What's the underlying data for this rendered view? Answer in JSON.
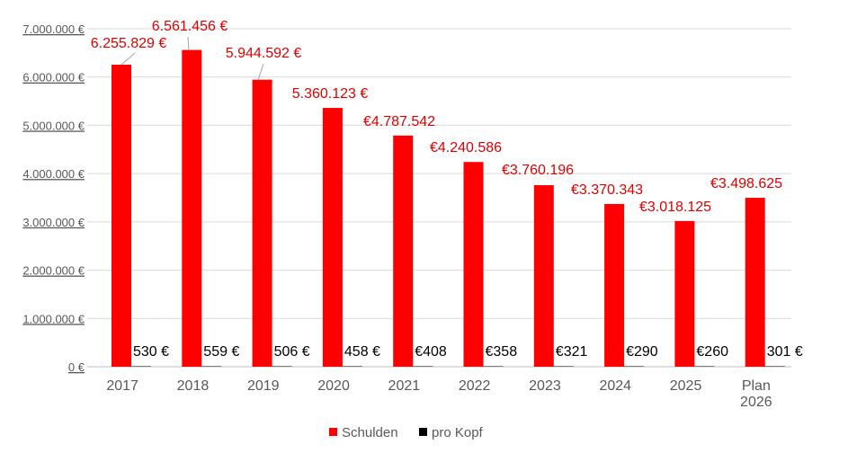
{
  "chart_data": {
    "type": "bar",
    "categories": [
      [
        "2017"
      ],
      [
        "2018"
      ],
      [
        "2019"
      ],
      [
        "2020"
      ],
      [
        "2021"
      ],
      [
        "2022"
      ],
      [
        "2023"
      ],
      [
        "2024"
      ],
      [
        "2025"
      ],
      [
        "Plan",
        "2026"
      ]
    ],
    "ylim": [
      0,
      7000000
    ],
    "yticks": [
      {
        "value": 0,
        "label": "0 €"
      },
      {
        "value": 1000000,
        "label": "1.000.000 €"
      },
      {
        "value": 2000000,
        "label": "2.000.000 €"
      },
      {
        "value": 3000000,
        "label": "3.000.000 €"
      },
      {
        "value": 4000000,
        "label": "4.000.000 €"
      },
      {
        "value": 5000000,
        "label": "5.000.000 €"
      },
      {
        "value": 6000000,
        "label": "6.000.000 €"
      },
      {
        "value": 7000000,
        "label": "7.000.000 €"
      }
    ],
    "grid": true,
    "legend_position": "bottom",
    "series": [
      {
        "name": "Schulden",
        "color": "#ff0000",
        "values": [
          6255829,
          6561456,
          5944592,
          5360123,
          4787542,
          4240586,
          3760196,
          3370343,
          3018125,
          3498625
        ],
        "labels": [
          "6.255.829 €",
          "6.561.456 €",
          "5.944.592 €",
          "5.360.123 €",
          "€4.787.542",
          "€4.240.586",
          "€3.760.196",
          "€3.370.343",
          "€3.018.125",
          "€3.498.625"
        ]
      },
      {
        "name": "pro Kopf",
        "color": "#000000",
        "values": [
          530,
          559,
          506,
          458,
          408,
          358,
          321,
          290,
          260,
          301
        ],
        "labels": [
          "530 €",
          "559 €",
          "506 €",
          "458 €",
          "€408",
          "€358",
          "€321",
          "€290",
          "€260",
          "301 €"
        ]
      }
    ]
  },
  "colors": {
    "label_red": "#e00000",
    "axis_text": "#595959",
    "grid": "#d9d9d9"
  }
}
